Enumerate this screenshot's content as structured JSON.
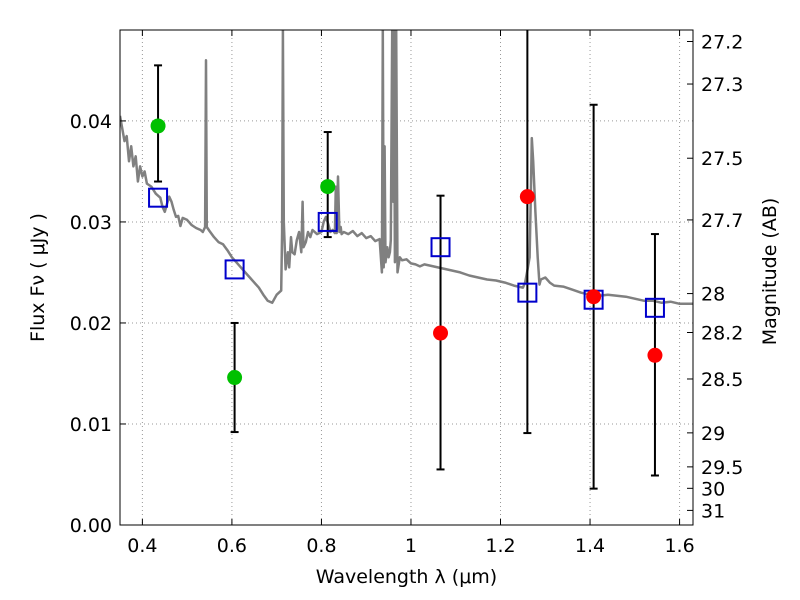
{
  "chart_data": {
    "type": "scatter",
    "title": "",
    "xlabel": "Wavelength  λ (μm)",
    "ylabel": "Flux  Fν  ( μJy )",
    "ylabel_right": "Magnitude (AB)",
    "xlim": [
      0.35,
      1.63
    ],
    "ylim": [
      0.0,
      0.049
    ],
    "grid": true,
    "x_ticks": [
      0.4,
      0.6,
      0.8,
      1.0,
      1.2,
      1.4,
      1.6
    ],
    "x_tick_labels": [
      "0.4",
      "0.6",
      "0.8",
      "1",
      "1.2",
      "1.4",
      "1.6"
    ],
    "y_ticks": [
      0.0,
      0.01,
      0.02,
      0.03,
      0.04
    ],
    "y_tick_labels": [
      "0.00",
      "0.01",
      "0.02",
      "0.03",
      "0.04"
    ],
    "right_ticks": [
      {
        "label": "27.2",
        "mag": 27.2
      },
      {
        "label": "27.3",
        "mag": 27.3
      },
      {
        "label": "27.5",
        "mag": 27.5
      },
      {
        "label": "27.7",
        "mag": 27.7
      },
      {
        "label": "28",
        "mag": 28.0
      },
      {
        "label": "28.2",
        "mag": 28.2
      },
      {
        "label": "28.5",
        "mag": 28.5
      },
      {
        "label": "29",
        "mag": 29.0
      },
      {
        "label": "29.5",
        "mag": 29.5
      },
      {
        "label": "30",
        "mag": 30.0
      },
      {
        "label": "31",
        "mag": 31.0
      }
    ],
    "colors": {
      "model": "#808080",
      "green": "#00c000",
      "red": "#ff0000",
      "square": "#0000cc",
      "errorbar": "#000000",
      "grid": "#999999"
    },
    "series": [
      {
        "kind": "model_spectrum",
        "points": [
          [
            0.35,
            0.0405
          ],
          [
            0.36,
            0.038
          ],
          [
            0.365,
            0.0385
          ],
          [
            0.37,
            0.036
          ],
          [
            0.375,
            0.0375
          ],
          [
            0.38,
            0.0355
          ],
          [
            0.385,
            0.0365
          ],
          [
            0.39,
            0.034
          ],
          [
            0.395,
            0.0355
          ],
          [
            0.4,
            0.0345
          ],
          [
            0.405,
            0.035
          ],
          [
            0.41,
            0.0338
          ],
          [
            0.42,
            0.0335
          ],
          [
            0.43,
            0.0328
          ],
          [
            0.44,
            0.0324
          ],
          [
            0.445,
            0.0315
          ],
          [
            0.45,
            0.031
          ],
          [
            0.455,
            0.0318
          ],
          [
            0.46,
            0.0325
          ],
          [
            0.465,
            0.032
          ],
          [
            0.47,
            0.0312
          ],
          [
            0.475,
            0.0305
          ],
          [
            0.48,
            0.0306
          ],
          [
            0.485,
            0.0296
          ],
          [
            0.49,
            0.0304
          ],
          [
            0.5,
            0.0302
          ],
          [
            0.51,
            0.0297
          ],
          [
            0.52,
            0.0294
          ],
          [
            0.53,
            0.0292
          ],
          [
            0.535,
            0.029
          ],
          [
            0.54,
            0.0295
          ],
          [
            0.542,
            0.046
          ],
          [
            0.544,
            0.0295
          ],
          [
            0.55,
            0.0291
          ],
          [
            0.56,
            0.0285
          ],
          [
            0.57,
            0.028
          ],
          [
            0.58,
            0.0278
          ],
          [
            0.59,
            0.0272
          ],
          [
            0.6,
            0.0265
          ],
          [
            0.61,
            0.026
          ],
          [
            0.62,
            0.0255
          ],
          [
            0.63,
            0.025
          ],
          [
            0.64,
            0.0245
          ],
          [
            0.65,
            0.024
          ],
          [
            0.66,
            0.0235
          ],
          [
            0.67,
            0.0228
          ],
          [
            0.68,
            0.0222
          ],
          [
            0.69,
            0.022
          ],
          [
            0.7,
            0.0228
          ],
          [
            0.71,
            0.0232
          ],
          [
            0.712,
            0.029
          ],
          [
            0.714,
            0.049
          ],
          [
            0.716,
            0.03
          ],
          [
            0.72,
            0.0253
          ],
          [
            0.722,
            0.026
          ],
          [
            0.725,
            0.027
          ],
          [
            0.728,
            0.0255
          ],
          [
            0.732,
            0.0285
          ],
          [
            0.735,
            0.027
          ],
          [
            0.74,
            0.0268
          ],
          [
            0.745,
            0.0282
          ],
          [
            0.75,
            0.029
          ],
          [
            0.755,
            0.027
          ],
          [
            0.758,
            0.032
          ],
          [
            0.76,
            0.0275
          ],
          [
            0.765,
            0.028
          ],
          [
            0.77,
            0.029
          ],
          [
            0.775,
            0.0285
          ],
          [
            0.78,
            0.0292
          ],
          [
            0.79,
            0.0288
          ],
          [
            0.8,
            0.029
          ],
          [
            0.805,
            0.03
          ],
          [
            0.81,
            0.0305
          ],
          [
            0.815,
            0.0298
          ],
          [
            0.82,
            0.029
          ],
          [
            0.825,
            0.0292
          ],
          [
            0.83,
            0.0289
          ],
          [
            0.832,
            0.0335
          ],
          [
            0.834,
            0.0289
          ],
          [
            0.837,
            0.0345
          ],
          [
            0.84,
            0.029
          ],
          [
            0.843,
            0.0295
          ],
          [
            0.845,
            0.0288
          ],
          [
            0.85,
            0.029
          ],
          [
            0.86,
            0.0288
          ],
          [
            0.87,
            0.0291
          ],
          [
            0.88,
            0.0286
          ],
          [
            0.89,
            0.0289
          ],
          [
            0.9,
            0.0284
          ],
          [
            0.91,
            0.0286
          ],
          [
            0.92,
            0.0281
          ],
          [
            0.93,
            0.0283
          ],
          [
            0.935,
            0.025
          ],
          [
            0.937,
            0.049
          ],
          [
            0.939,
            0.0255
          ],
          [
            0.941,
            0.0375
          ],
          [
            0.943,
            0.026
          ],
          [
            0.947,
            0.0275
          ],
          [
            0.95,
            0.0265
          ],
          [
            0.953,
            0.027
          ],
          [
            0.955,
            0.0282
          ],
          [
            0.958,
            0.049
          ],
          [
            0.96,
            0.032
          ],
          [
            0.962,
            0.049
          ],
          [
            0.964,
            0.026
          ],
          [
            0.967,
            0.049
          ],
          [
            0.97,
            0.025
          ],
          [
            0.975,
            0.0265
          ],
          [
            0.98,
            0.0262
          ],
          [
            0.99,
            0.0263
          ],
          [
            1.0,
            0.0259
          ],
          [
            1.01,
            0.0258
          ],
          [
            1.02,
            0.0256
          ],
          [
            1.03,
            0.0258
          ],
          [
            1.05,
            0.0256
          ],
          [
            1.07,
            0.0254
          ],
          [
            1.09,
            0.0252
          ],
          [
            1.11,
            0.025
          ],
          [
            1.13,
            0.0247
          ],
          [
            1.15,
            0.0245
          ],
          [
            1.17,
            0.0243
          ],
          [
            1.19,
            0.0242
          ],
          [
            1.21,
            0.024
          ],
          [
            1.23,
            0.0237
          ],
          [
            1.25,
            0.0235
          ],
          [
            1.255,
            0.024
          ],
          [
            1.26,
            0.0252
          ],
          [
            1.265,
            0.0265
          ],
          [
            1.268,
            0.033
          ],
          [
            1.27,
            0.0383
          ],
          [
            1.273,
            0.036
          ],
          [
            1.278,
            0.031
          ],
          [
            1.283,
            0.0265
          ],
          [
            1.287,
            0.0238
          ],
          [
            1.29,
            0.0243
          ],
          [
            1.3,
            0.0245
          ],
          [
            1.31,
            0.024
          ],
          [
            1.32,
            0.0237
          ],
          [
            1.34,
            0.0236
          ],
          [
            1.36,
            0.0233
          ],
          [
            1.38,
            0.023
          ],
          [
            1.4,
            0.0228
          ],
          [
            1.42,
            0.0227
          ],
          [
            1.44,
            0.0228
          ],
          [
            1.46,
            0.0227
          ],
          [
            1.48,
            0.0226
          ],
          [
            1.5,
            0.0224
          ],
          [
            1.52,
            0.0222
          ],
          [
            1.54,
            0.0222
          ],
          [
            1.56,
            0.022
          ],
          [
            1.58,
            0.0221
          ],
          [
            1.6,
            0.0219
          ],
          [
            1.63,
            0.0219
          ]
        ]
      },
      {
        "kind": "observed_green",
        "points": [
          {
            "x": 0.435,
            "y": 0.0395,
            "err_hi": 0.0455,
            "err_lo": 0.034
          },
          {
            "x": 0.606,
            "y": 0.0146,
            "err_hi": 0.02,
            "err_lo": 0.0092
          },
          {
            "x": 0.814,
            "y": 0.0335,
            "err_hi": 0.0389,
            "err_lo": 0.0285
          }
        ]
      },
      {
        "kind": "observed_red",
        "points": [
          {
            "x": 1.066,
            "y": 0.019,
            "err_hi": 0.0326,
            "err_lo": 0.0055
          },
          {
            "x": 1.26,
            "y": 0.0325,
            "err_hi": 0.049,
            "err_lo": 0.0091
          },
          {
            "x": 1.408,
            "y": 0.0226,
            "err_hi": 0.0416,
            "err_lo": 0.0036
          },
          {
            "x": 1.545,
            "y": 0.0168,
            "err_hi": 0.0288,
            "err_lo": 0.0049
          }
        ]
      },
      {
        "kind": "model_bandpass_squares",
        "points": [
          {
            "x": 0.435,
            "y": 0.0324
          },
          {
            "x": 0.606,
            "y": 0.0253
          },
          {
            "x": 0.814,
            "y": 0.03
          },
          {
            "x": 1.066,
            "y": 0.0275
          },
          {
            "x": 1.26,
            "y": 0.023
          },
          {
            "x": 1.408,
            "y": 0.0223
          },
          {
            "x": 1.545,
            "y": 0.0215
          }
        ]
      }
    ]
  }
}
